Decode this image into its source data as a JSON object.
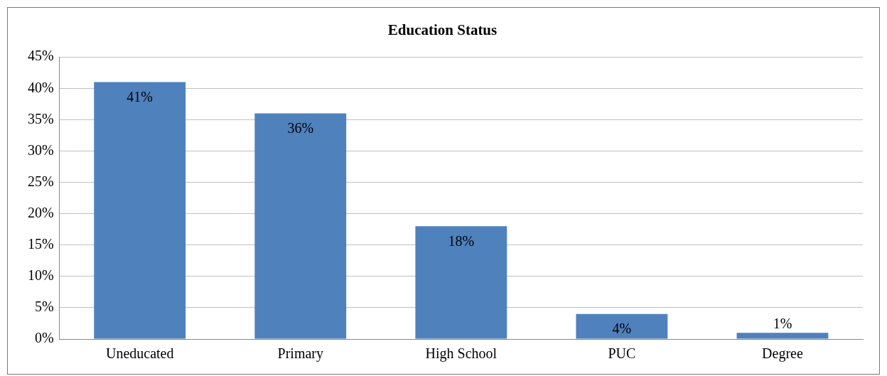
{
  "chart_data": {
    "type": "bar",
    "title": "Education Status",
    "categories": [
      "Uneducated",
      "Primary",
      "High School",
      "PUC",
      "Degree"
    ],
    "values": [
      41,
      36,
      18,
      4,
      1
    ],
    "color": "#4f81bd",
    "value_labels": [
      "41%",
      "36%",
      "18%",
      "4%",
      "1%"
    ],
    "ylim": [
      0,
      45
    ],
    "yticks": [
      {
        "value": 0,
        "label": "0%"
      },
      {
        "value": 5,
        "label": "5%"
      },
      {
        "value": 10,
        "label": "10%"
      },
      {
        "value": 15,
        "label": "15%"
      },
      {
        "value": 20,
        "label": "20%"
      },
      {
        "value": 25,
        "label": "25%"
      },
      {
        "value": 30,
        "label": "30%"
      },
      {
        "value": 35,
        "label": "35%"
      },
      {
        "value": 40,
        "label": "40%"
      },
      {
        "value": 45,
        "label": "45%"
      }
    ],
    "grid": "y",
    "legend": false
  }
}
